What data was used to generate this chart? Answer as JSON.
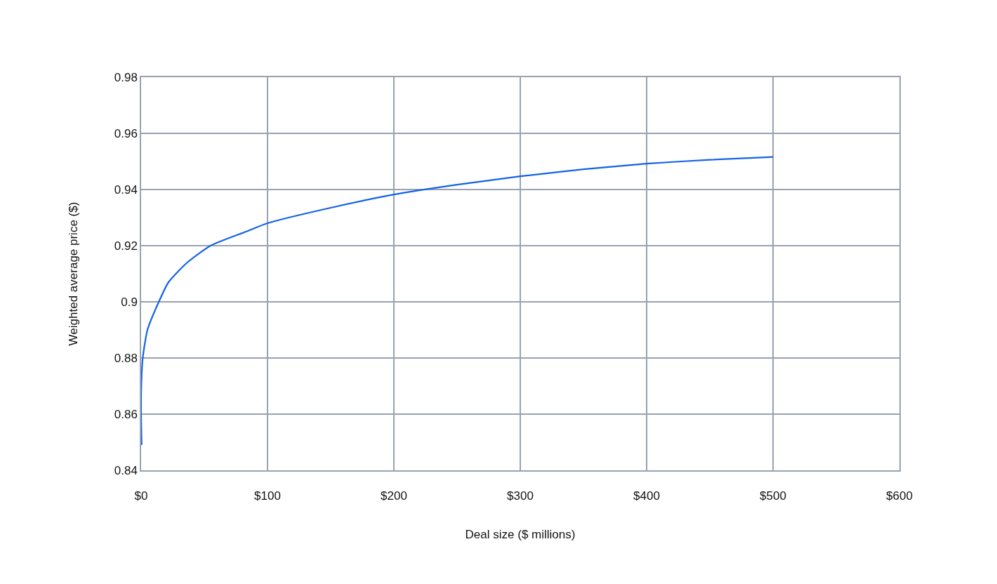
{
  "chart_data": {
    "type": "line",
    "xlabel": "Deal size ($ millions)",
    "ylabel": "Weighted average price ($)",
    "x": [
      0.4,
      0,
      0.2,
      1.3,
      5,
      14,
      21.7,
      36.5,
      55,
      83,
      100,
      150,
      200,
      250,
      300,
      350,
      400,
      450,
      500
    ],
    "series": [
      {
        "color": "#1463e6",
        "values": [
          0.849,
          0.86,
          0.871,
          0.88,
          0.89,
          0.9,
          0.907,
          0.914,
          0.92,
          0.925,
          0.928,
          0.9335,
          0.9382,
          0.9417,
          0.9447,
          0.9472,
          0.9492,
          0.9506,
          0.9516
        ]
      }
    ],
    "xlim": [
      0,
      600
    ],
    "xticks": [
      {
        "value": 0,
        "label": "$0"
      },
      {
        "value": 100,
        "label": "$100"
      },
      {
        "value": 200,
        "label": "$200"
      },
      {
        "value": 300,
        "label": "$300"
      },
      {
        "value": 400,
        "label": "$400"
      },
      {
        "value": 500,
        "label": "$500"
      },
      {
        "value": 600,
        "label": "$600"
      }
    ],
    "ylim": [
      0.84,
      0.98
    ],
    "yticks": [
      0.84,
      0.86,
      0.88,
      {
        "value": 0.9,
        "label": "0.9"
      },
      0.92,
      0.94,
      0.96,
      0.98
    ],
    "grid": true,
    "legend": false,
    "marker": "none",
    "line_style": "solid"
  }
}
